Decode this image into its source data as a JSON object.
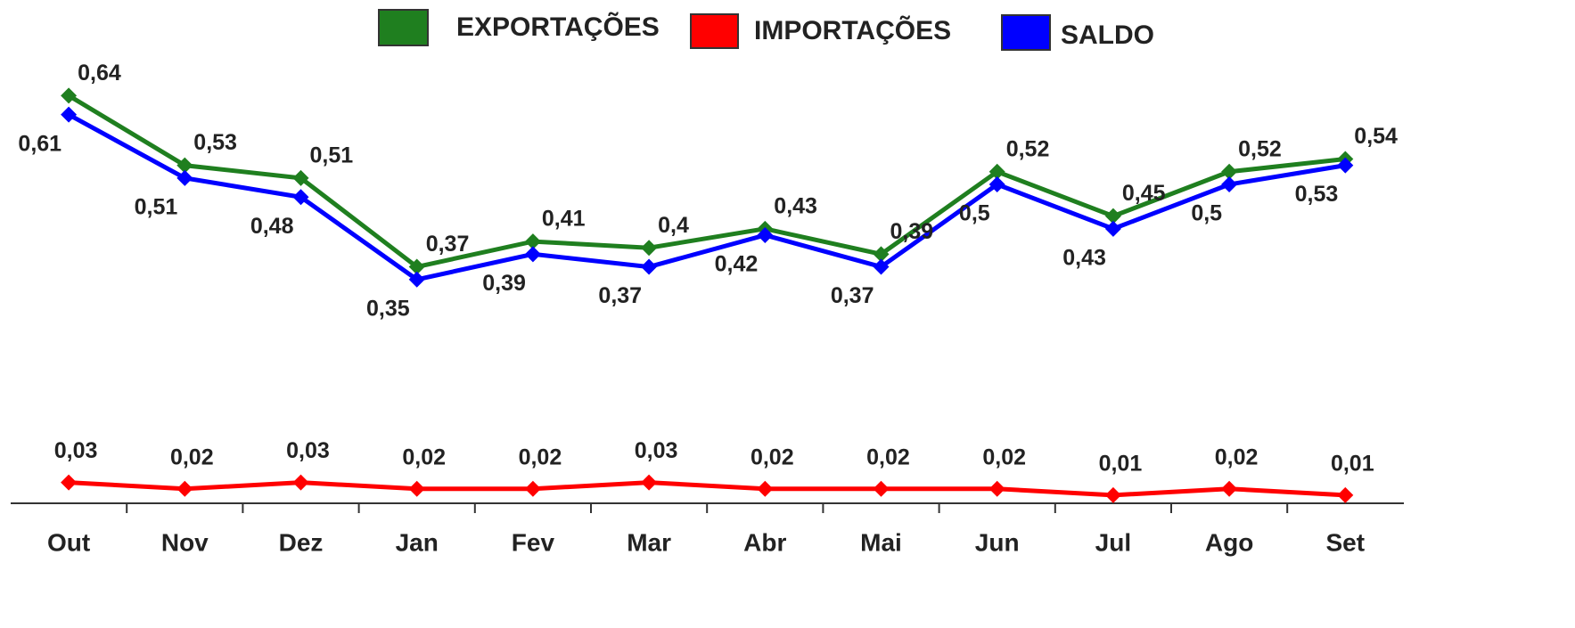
{
  "chart_data": {
    "type": "line",
    "categories": [
      "Out",
      "Nov",
      "Dez",
      "Jan",
      "Fev",
      "Mar",
      "Abr",
      "Mai",
      "Jun",
      "Jul",
      "Ago",
      "Set"
    ],
    "series": [
      {
        "name": "EXPORTAÇÕES",
        "color": "#1f7f1f",
        "values": [
          0.64,
          0.53,
          0.51,
          0.37,
          0.41,
          0.4,
          0.43,
          0.39,
          0.52,
          0.45,
          0.52,
          0.54
        ],
        "value_labels": [
          "0,64",
          "0,53",
          "0,51",
          "0,37",
          "0,41",
          "0,4",
          "0,43",
          "0,39",
          "0,52",
          "0,45",
          "0,52",
          "0,54"
        ]
      },
      {
        "name": "IMPORTAÇÕES",
        "color": "#ff0000",
        "values": [
          0.03,
          0.02,
          0.03,
          0.02,
          0.02,
          0.03,
          0.02,
          0.02,
          0.02,
          0.01,
          0.02,
          0.01
        ],
        "value_labels": [
          "0,03",
          "0,02",
          "0,03",
          "0,02",
          "0,02",
          "0,03",
          "0,02",
          "0,02",
          "0,02",
          "0,01",
          "0,02",
          "0,01"
        ]
      },
      {
        "name": "SALDO",
        "color": "#0000ff",
        "values": [
          0.61,
          0.51,
          0.48,
          0.35,
          0.39,
          0.37,
          0.42,
          0.37,
          0.5,
          0.43,
          0.5,
          0.53
        ],
        "value_labels": [
          "0,61",
          "0,51",
          "0,48",
          "0,35",
          "0,39",
          "0,37",
          "0,42",
          "0,37",
          "0,5",
          "0,43",
          "0,5",
          "0,53"
        ]
      }
    ],
    "ylim": [
      0,
      0.75
    ],
    "legend": "top"
  }
}
